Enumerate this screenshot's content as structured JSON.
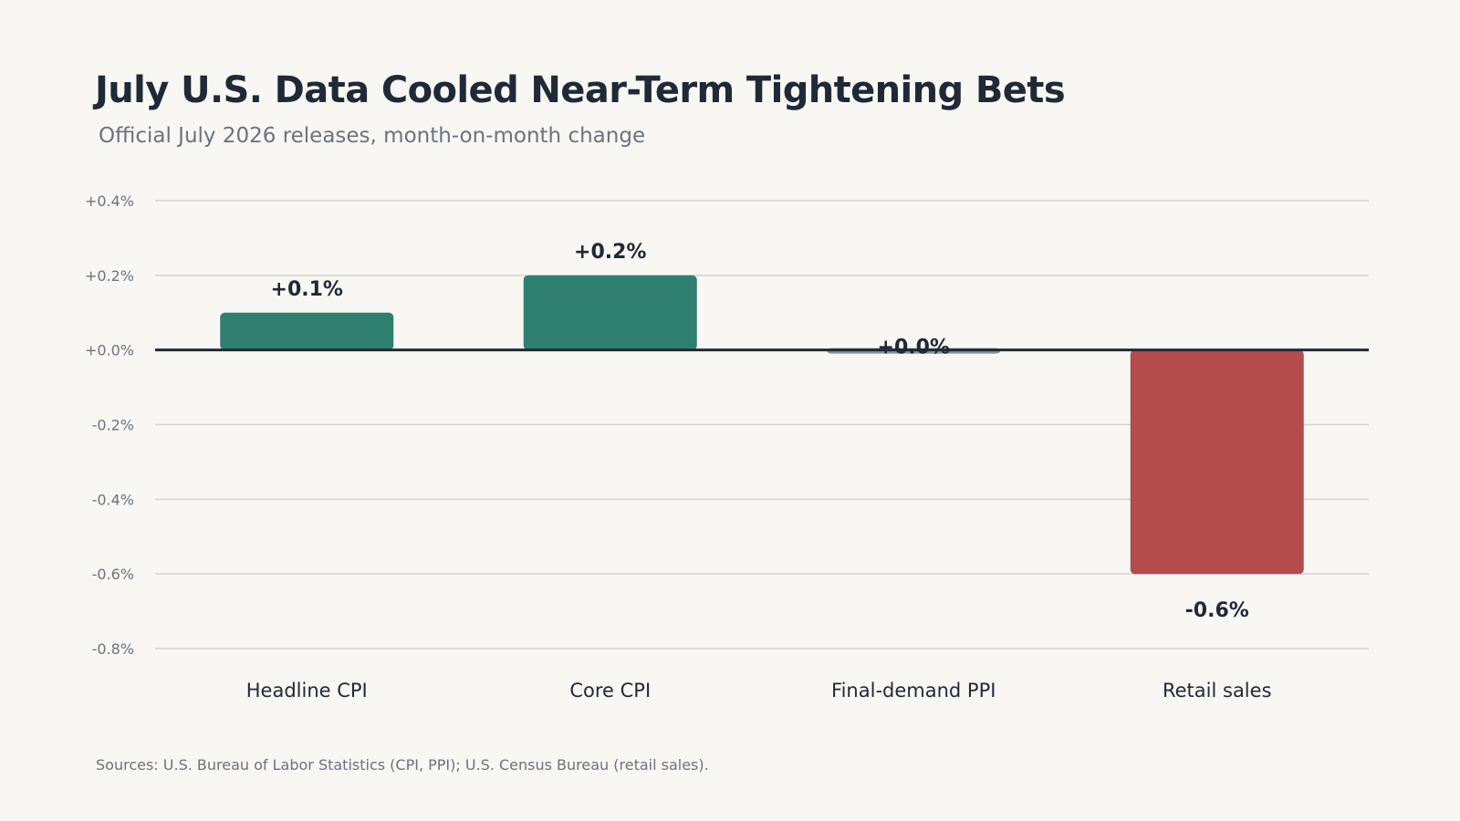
{
  "header": {
    "title": "July U.S. Data Cooled Near-Term Tightening Bets",
    "subtitle": "Official July 2026 releases, month-on-month change"
  },
  "footer": {
    "source": "Sources: U.S. Bureau of Labor Statistics (CPI, PPI); U.S. Census Bureau (retail sales)."
  },
  "colors": {
    "positive": "#2e7f6f",
    "neutral": "#87919a",
    "negative": "#b54c4c",
    "gridline": "#d3d3cf",
    "zeroline": "#1f2937"
  },
  "chart_data": {
    "type": "bar",
    "title": "July U.S. Data Cooled Near-Term Tightening Bets",
    "subtitle": "Official July 2026 releases, month-on-month change",
    "categories": [
      "Headline CPI",
      "Core CPI",
      "Final-demand PPI",
      "Retail sales"
    ],
    "values": [
      0.1,
      0.2,
      0.0,
      -0.6
    ],
    "value_labels": [
      "+0.1%",
      "+0.2%",
      "+0.0%",
      "-0.6%"
    ],
    "unit": "%",
    "xlabel": "",
    "ylabel": "",
    "ylim": [
      -0.8,
      0.4
    ],
    "yticks": [
      0.4,
      0.2,
      0.0,
      -0.2,
      -0.4,
      -0.6,
      -0.8
    ],
    "ytick_labels": [
      "+0.4%",
      "+0.2%",
      "+0.0%",
      "-0.2%",
      "-0.4%",
      "-0.6%",
      "-0.8%"
    ],
    "grid": true,
    "legend": "none"
  }
}
